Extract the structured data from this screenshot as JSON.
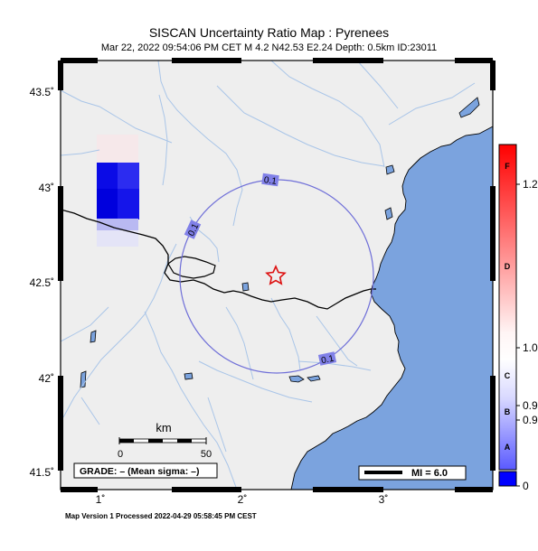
{
  "header": {
    "title": "SISCAN Uncertainty Ratio Map : Pyrenees",
    "subtitle": "Mar 22, 2022 09:54:06 PM CET   M 4.2   N42.53 E2.24   Depth: 0.5km   ID:23011"
  },
  "footer": {
    "text": "Map Version 1 Processed 2022-04-29 05:58:45 PM CEST"
  },
  "map": {
    "lat_labels": [
      "43.5˚",
      "43˚",
      "42.5˚",
      "42˚",
      "41.5˚"
    ],
    "lon_labels": [
      "1˚",
      "2˚",
      "3˚"
    ],
    "contour_labels": [
      "0.1",
      "0.1",
      "0.1"
    ],
    "epicenter_symbol": "star",
    "scale_bar": {
      "title": "km",
      "left_label": "0",
      "right_label": "50"
    },
    "grade_box": "GRADE: – (Mean sigma: –)",
    "mi_legend": "MI = 6.0",
    "colors": {
      "land": "#eeeeee",
      "sea": "#7ba3de",
      "rivers": "#a8c4e6",
      "border": "#000000",
      "contour": "#6f6fd8",
      "star": "#dd1111"
    }
  },
  "colorbar": {
    "letters": [
      "F",
      "D",
      "C",
      "B",
      "A"
    ],
    "values": [
      "1.2",
      "1.0",
      "0.9",
      "0.9",
      "0"
    ],
    "colors": {
      "top": "#ff0000",
      "middle": "#ffffff",
      "bottom": "#0000ff"
    }
  }
}
